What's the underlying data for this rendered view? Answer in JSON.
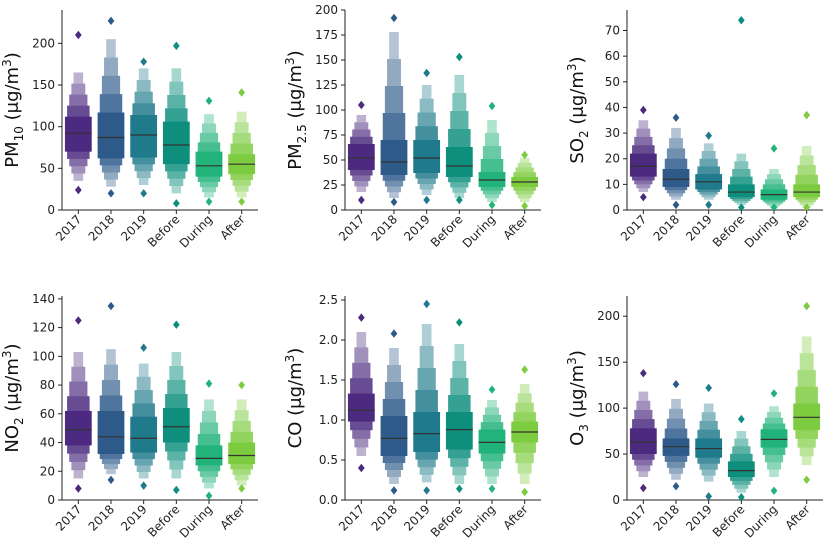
{
  "chart_data": [
    {
      "type": "boxen",
      "ylabel_base": "PM",
      "ylabel_sub": "10",
      "ylabel_unit": " (μg/m",
      "ylabel_sup": "3",
      "ylabel_close": ")",
      "ylim": [
        0,
        240
      ],
      "yticks": [
        "0",
        "50",
        "100",
        "150",
        "200"
      ],
      "categories": [
        "2017",
        "2018",
        "2019",
        "Before",
        "During",
        "After"
      ],
      "groups": [
        {
          "median": 92,
          "q1": 70,
          "q3": 112,
          "min": 35,
          "max": 165,
          "outliers": [
            210,
            24
          ]
        },
        {
          "median": 87,
          "q1": 62,
          "q3": 117,
          "min": 28,
          "max": 205,
          "outliers": [
            227,
            20
          ]
        },
        {
          "median": 90,
          "q1": 63,
          "q3": 114,
          "min": 30,
          "max": 170,
          "outliers": [
            178,
            20
          ]
        },
        {
          "median": 78,
          "q1": 55,
          "q3": 106,
          "min": 20,
          "max": 170,
          "outliers": [
            197,
            8
          ]
        },
        {
          "median": 53,
          "q1": 40,
          "q3": 70,
          "min": 15,
          "max": 115,
          "outliers": [
            131,
            10
          ]
        },
        {
          "median": 55,
          "q1": 43,
          "q3": 67,
          "min": 15,
          "max": 118,
          "outliers": [
            141,
            10
          ]
        }
      ]
    },
    {
      "type": "boxen",
      "ylabel_base": "PM",
      "ylabel_sub": "2.5",
      "ylabel_unit": " (μg/m",
      "ylabel_sup": "3",
      "ylabel_close": ")",
      "ylim": [
        0,
        200
      ],
      "yticks": [
        "0",
        "25",
        "50",
        "75",
        "100",
        "125",
        "150",
        "175",
        "200"
      ],
      "categories": [
        "2017",
        "2018",
        "2019",
        "Before",
        "During",
        "After"
      ],
      "groups": [
        {
          "median": 52,
          "q1": 40,
          "q3": 66,
          "min": 18,
          "max": 95,
          "outliers": [
            105,
            10
          ]
        },
        {
          "median": 48,
          "q1": 35,
          "q3": 70,
          "min": 12,
          "max": 178,
          "outliers": [
            192,
            8
          ]
        },
        {
          "median": 52,
          "q1": 37,
          "q3": 70,
          "min": 15,
          "max": 125,
          "outliers": [
            137,
            10
          ]
        },
        {
          "median": 44,
          "q1": 33,
          "q3": 63,
          "min": 12,
          "max": 135,
          "outliers": [
            153,
            10
          ]
        },
        {
          "median": 30,
          "q1": 23,
          "q3": 38,
          "min": 8,
          "max": 90,
          "outliers": [
            104,
            5
          ]
        },
        {
          "median": 28,
          "q1": 23,
          "q3": 33,
          "min": 8,
          "max": 52,
          "outliers": [
            55,
            4
          ]
        }
      ]
    },
    {
      "type": "boxen",
      "ylabel_base": "SO",
      "ylabel_sub": "2",
      "ylabel_unit": " (μg/m",
      "ylabel_sup": "3",
      "ylabel_close": ")",
      "ylim": [
        0,
        78
      ],
      "yticks": [
        "0",
        "10",
        "20",
        "30",
        "40",
        "50",
        "60",
        "70"
      ],
      "categories": [
        "2017",
        "2018",
        "2019",
        "Before",
        "During",
        "After"
      ],
      "groups": [
        {
          "median": 17,
          "q1": 13,
          "q3": 22,
          "min": 7,
          "max": 35,
          "outliers": [
            39,
            5
          ]
        },
        {
          "median": 12,
          "q1": 9,
          "q3": 16,
          "min": 4,
          "max": 32,
          "outliers": [
            36,
            2
          ]
        },
        {
          "median": 11,
          "q1": 8,
          "q3": 14,
          "min": 4,
          "max": 26,
          "outliers": [
            29,
            2
          ]
        },
        {
          "median": 7,
          "q1": 5,
          "q3": 10,
          "min": 2,
          "max": 22,
          "outliers": [
            74,
            1
          ]
        },
        {
          "median": 6,
          "q1": 4,
          "q3": 8,
          "min": 1,
          "max": 16,
          "outliers": [
            24,
            1
          ]
        },
        {
          "median": 7,
          "q1": 5,
          "q3": 10,
          "min": 1,
          "max": 25,
          "outliers": [
            37,
            1
          ]
        }
      ]
    },
    {
      "type": "boxen",
      "ylabel_base": "NO",
      "ylabel_sub": "2",
      "ylabel_unit": " (μg/m",
      "ylabel_sup": "3",
      "ylabel_close": ")",
      "ylim": [
        0,
        142
      ],
      "yticks": [
        "0",
        "20",
        "40",
        "60",
        "80",
        "100",
        "120",
        "140"
      ],
      "categories": [
        "2017",
        "2018",
        "2019",
        "Before",
        "During",
        "After"
      ],
      "groups": [
        {
          "median": 49,
          "q1": 38,
          "q3": 62,
          "min": 15,
          "max": 103,
          "outliers": [
            125,
            8
          ]
        },
        {
          "median": 44,
          "q1": 32,
          "q3": 62,
          "min": 18,
          "max": 105,
          "outliers": [
            135,
            14
          ]
        },
        {
          "median": 43,
          "q1": 33,
          "q3": 58,
          "min": 15,
          "max": 95,
          "outliers": [
            106,
            10
          ]
        },
        {
          "median": 51,
          "q1": 40,
          "q3": 64,
          "min": 15,
          "max": 103,
          "outliers": [
            122,
            7
          ]
        },
        {
          "median": 29,
          "q1": 24,
          "q3": 38,
          "min": 8,
          "max": 70,
          "outliers": [
            81,
            3
          ]
        },
        {
          "median": 31,
          "q1": 25,
          "q3": 40,
          "min": 10,
          "max": 70,
          "outliers": [
            80,
            8
          ]
        }
      ]
    },
    {
      "type": "boxen",
      "ylabel_base": "CO",
      "ylabel_sub": "",
      "ylabel_unit": " (μg/m",
      "ylabel_sup": "3",
      "ylabel_close": ")",
      "ylim": [
        0,
        2.55
      ],
      "yticks": [
        "0.0",
        "0.5",
        "1.0",
        "1.5",
        "2.0",
        "2.5"
      ],
      "categories": [
        "2017",
        "2018",
        "2019",
        "Before",
        "During",
        "After"
      ],
      "groups": [
        {
          "median": 1.12,
          "q1": 0.98,
          "q3": 1.33,
          "min": 0.55,
          "max": 2.1,
          "outliers": [
            2.28,
            0.4
          ]
        },
        {
          "median": 0.77,
          "q1": 0.55,
          "q3": 1.05,
          "min": 0.2,
          "max": 1.9,
          "outliers": [
            2.08,
            0.12
          ]
        },
        {
          "median": 0.83,
          "q1": 0.6,
          "q3": 1.1,
          "min": 0.22,
          "max": 2.2,
          "outliers": [
            2.45,
            0.12
          ]
        },
        {
          "median": 0.88,
          "q1": 0.63,
          "q3": 1.1,
          "min": 0.2,
          "max": 1.95,
          "outliers": [
            2.22,
            0.14
          ]
        },
        {
          "median": 0.72,
          "q1": 0.58,
          "q3": 0.88,
          "min": 0.2,
          "max": 1.25,
          "outliers": [
            1.38,
            0.14
          ]
        },
        {
          "median": 0.85,
          "q1": 0.72,
          "q3": 0.98,
          "min": 0.2,
          "max": 1.45,
          "outliers": [
            1.63,
            0.1
          ]
        }
      ]
    },
    {
      "type": "boxen",
      "ylabel_base": "O",
      "ylabel_sub": "3",
      "ylabel_unit": " (μg/m",
      "ylabel_sup": "3",
      "ylabel_close": ")",
      "ylim": [
        0,
        222
      ],
      "yticks": [
        "0",
        "50",
        "100",
        "150",
        "200"
      ],
      "categories": [
        "2017",
        "2018",
        "2019",
        "Before",
        "During",
        "After"
      ],
      "groups": [
        {
          "median": 63,
          "q1": 50,
          "q3": 78,
          "min": 25,
          "max": 118,
          "outliers": [
            138,
            13
          ]
        },
        {
          "median": 58,
          "q1": 48,
          "q3": 67,
          "min": 22,
          "max": 110,
          "outliers": [
            126,
            15
          ]
        },
        {
          "median": 56,
          "q1": 46,
          "q3": 67,
          "min": 20,
          "max": 105,
          "outliers": [
            122,
            4
          ]
        },
        {
          "median": 32,
          "q1": 25,
          "q3": 42,
          "min": 8,
          "max": 75,
          "outliers": [
            88,
            3
          ]
        },
        {
          "median": 66,
          "q1": 57,
          "q3": 77,
          "min": 25,
          "max": 102,
          "outliers": [
            116,
            10
          ]
        },
        {
          "median": 90,
          "q1": 76,
          "q3": 105,
          "min": 38,
          "max": 178,
          "outliers": [
            211,
            22
          ]
        }
      ]
    }
  ],
  "colors": [
    "#4b2a7f",
    "#2e5a8a",
    "#1f7a8c",
    "#0e8f7e",
    "#22b37a",
    "#7dcc3f"
  ]
}
